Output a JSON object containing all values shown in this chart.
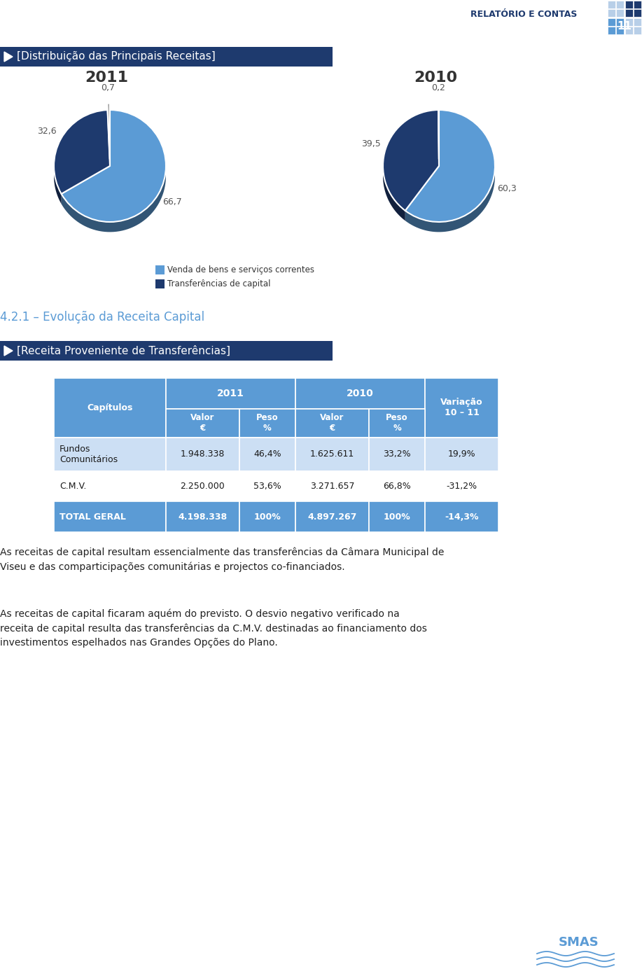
{
  "page_bg": "#ffffff",
  "header_text": "RELATÓRIO E CONTAS",
  "header_color": "#1e3a6e",
  "header_fontsize": 9,
  "section1_title": "[Distribuição das Principais Receitas]",
  "section1_bg": "#1e3a6e",
  "section1_text_color": "#ffffff",
  "section1_fontsize": 11,
  "pie2011_values": [
    66.7,
    32.6,
    0.7
  ],
  "pie2010_values": [
    60.3,
    39.5,
    0.2
  ],
  "pie_colors_light": "#5b9bd5",
  "pie_colors_dark": "#1e3a6e",
  "pie_colors_grey": "#8a8a8a",
  "pie2011_label": "2011",
  "pie2010_label": "2010",
  "pie_year_fontsize": 16,
  "pie_value_fontsize": 9,
  "legend_label1": "Venda de bens e serviços correntes",
  "legend_label2": "Transferências de capital",
  "legend_color1": "#5b9bd5",
  "legend_color2": "#1e3a6e",
  "section2_title": "4.2.1 – Evolução da Receita Capital",
  "section2_color": "#5b9bd5",
  "section2_fontsize": 12,
  "section3_title": "[Receita Proveniente de Transferências]",
  "section3_bg": "#1e3a6e",
  "section3_text_color": "#ffffff",
  "section3_fontsize": 11,
  "table_header_bg": "#5b9bd5",
  "table_subheader_bg": "#5b9bd5",
  "table_row_bg1": "#ccdff4",
  "table_row_bg2": "#ffffff",
  "table_total_bg": "#5b9bd5",
  "table_header_text": "#ffffff",
  "table_text_dark": "#1a1a1a",
  "table_rows": [
    [
      "Fundos\nComunitários",
      "1.948.338",
      "46,4%",
      "1.625.611",
      "33,2%",
      "19,9%"
    ],
    [
      "C.M.V.",
      "2.250.000",
      "53,6%",
      "3.271.657",
      "66,8%",
      "-31,2%"
    ],
    [
      "TOTAL GERAL",
      "4.198.338",
      "100%",
      "4.897.267",
      "100%",
      "-14,3%"
    ]
  ],
  "body_text1": "As receitas de capital resultam essencialmente das transferências da Câmara Municipal de\nViseu e das comparticipações comunitárias e projectos co-financiados.",
  "body_text2": "As receitas de capital ficaram aquém do previsto. O desvio negativo verificado na\nreceita de capital resulta das transferências da C.M.V. destinadas ao financiamento dos\ninvestimentos espelhados nas Grandes Opções do Plano.",
  "body_fontsize": 10,
  "footer_logo_color": "#5b9bd5"
}
